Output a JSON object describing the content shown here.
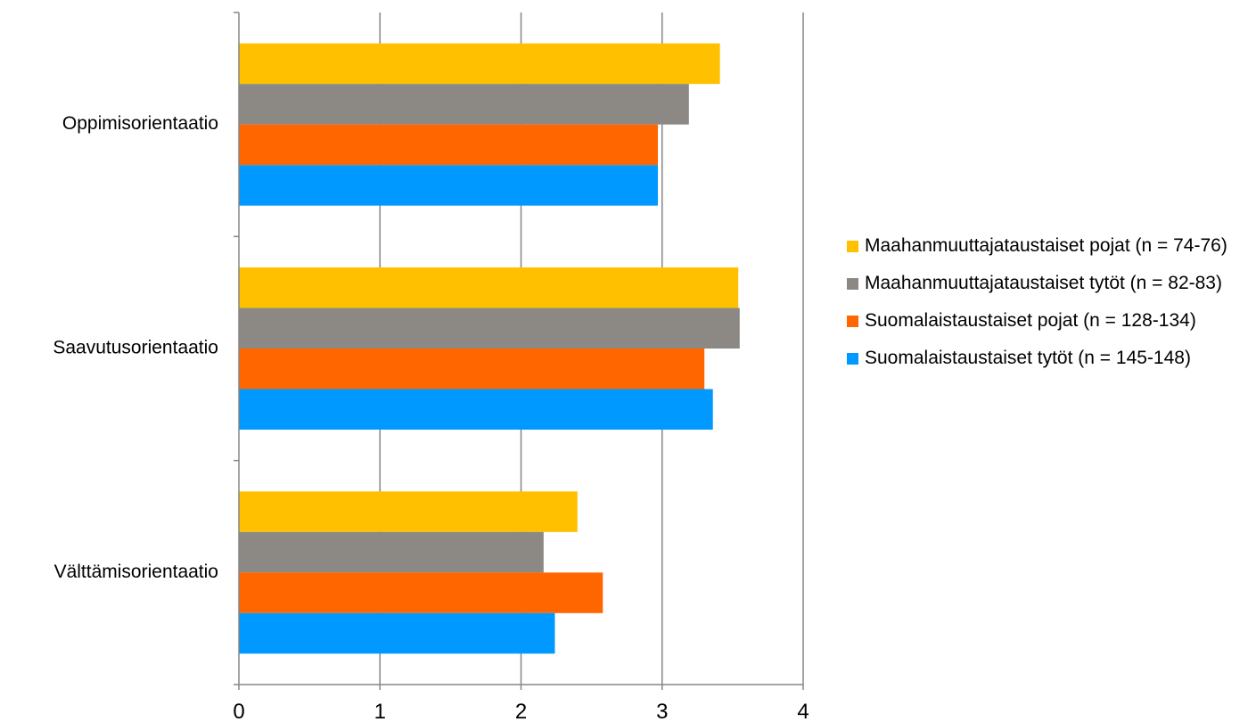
{
  "chart_data": {
    "type": "bar",
    "orientation": "horizontal",
    "categories": [
      "Oppimisorientaatio",
      "Saavutusorientaatio",
      "Välttämisorientaatio"
    ],
    "series": [
      {
        "name": "Maahanmuuttajataustaiset pojat (n = 74-76)",
        "color": "#FFC000",
        "values": [
          3.41,
          3.54,
          2.4
        ]
      },
      {
        "name": "Maahanmuuttajataustaiset tytöt (n = 82-83)",
        "color": "#8C8984",
        "values": [
          3.19,
          3.55,
          2.16
        ]
      },
      {
        "name": "Suomalaistaustaiset pojat (n = 128-134)",
        "color": "#FF6600",
        "values": [
          2.97,
          3.3,
          2.58
        ]
      },
      {
        "name": "Suomalaistaustaiset tytöt (n = 145-148)",
        "color": "#0099FF",
        "values": [
          2.97,
          3.36,
          2.24
        ]
      }
    ],
    "xlim": [
      0,
      4
    ],
    "xticks": [
      "0",
      "1",
      "2",
      "3",
      "4"
    ],
    "grid": true,
    "legend_position": "right"
  },
  "legend": {
    "items": [
      {
        "label": "Maahanmuuttajataustaiset pojat (n = 74-76)",
        "color": "#FFC000",
        "icon": "square-swatch"
      },
      {
        "label": "Maahanmuuttajataustaiset tytöt (n = 82-83)",
        "color": "#8C8984",
        "icon": "square-swatch"
      },
      {
        "label": "Suomalaistaustaiset pojat (n = 128-134)",
        "color": "#FF6600",
        "icon": "square-swatch"
      },
      {
        "label": "Suomalaistaustaiset tytöt (n = 145-148)",
        "color": "#0099FF",
        "icon": "square-swatch"
      }
    ]
  }
}
